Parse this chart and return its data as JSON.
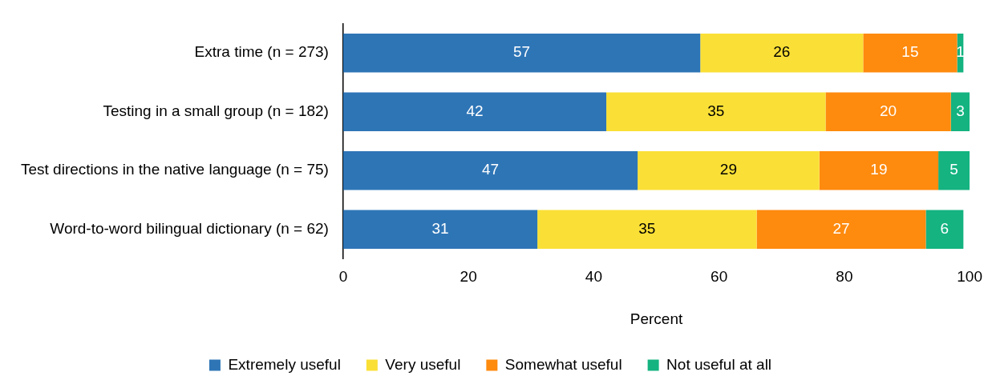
{
  "chart_data": {
    "type": "bar",
    "orientation": "horizontal",
    "stacked": true,
    "xlabel": "Percent",
    "categories": [
      "Extra time (n = 273)",
      "Testing in a small group (n = 182)",
      "Test directions in the native language (n = 75)",
      "Word-to-word bilingual dictionary (n = 62)"
    ],
    "series": [
      {
        "name": "Extremely useful",
        "color": "#2e75b6",
        "values": [
          57,
          42,
          47,
          31
        ]
      },
      {
        "name": "Very useful",
        "color": "#fae036",
        "values": [
          26,
          35,
          29,
          35
        ]
      },
      {
        "name": "Somewhat useful",
        "color": "#fe8a0e",
        "values": [
          15,
          20,
          19,
          27
        ]
      },
      {
        "name": "Not useful at all",
        "color": "#14b380",
        "values": [
          1,
          3,
          5,
          6
        ]
      }
    ],
    "xlim": [
      0,
      100
    ],
    "xticks": [
      0,
      20,
      40,
      60,
      80,
      100
    ],
    "grid": false,
    "legend": "bottom",
    "data_labels": true
  }
}
